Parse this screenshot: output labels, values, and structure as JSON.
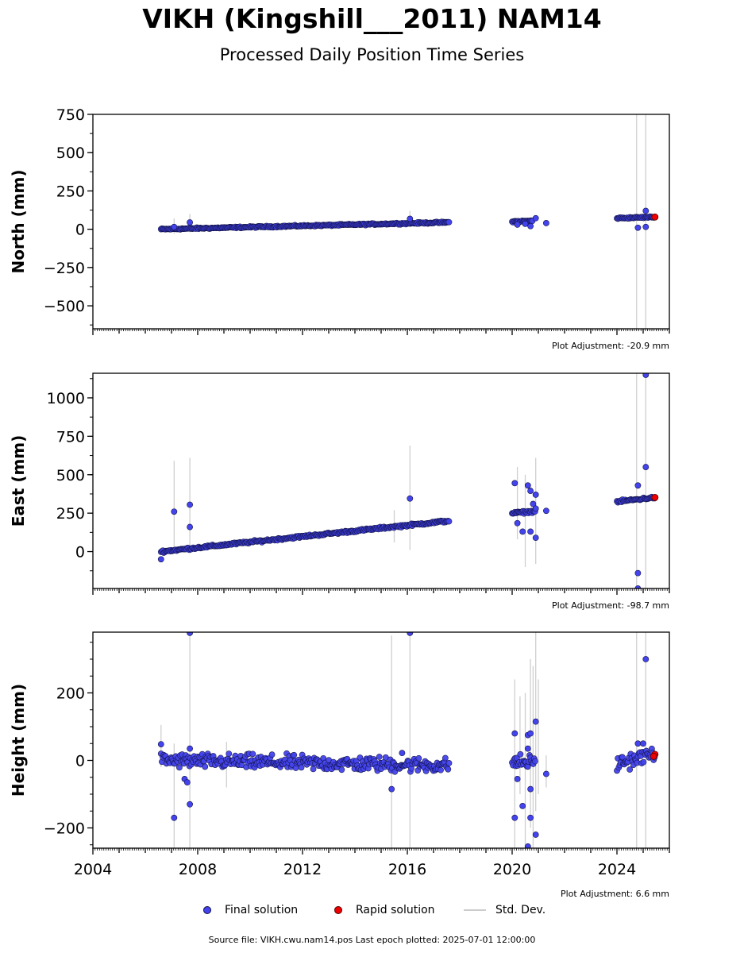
{
  "title": "VIKH (Kingshill___2011) NAM14",
  "subtitle": "Processed Daily Position Time Series",
  "legend": {
    "final": "Final solution",
    "rapid": "Rapid solution",
    "std": "Std. Dev."
  },
  "footer": "Source file: VIKH.cwu.nam14.pos  Last epoch plotted: 2025-07-01 12:00:00",
  "colors": {
    "final": "#4444ee",
    "final_edge": "#111144",
    "rapid": "#ee0000",
    "std": "#bbbbbb"
  },
  "chart_data": [
    {
      "type": "scatter",
      "ylabel": "North (mm)",
      "adjustment": "Plot Adjustment: -20.9 mm",
      "xlim": [
        2004,
        2026
      ],
      "ylim": [
        -650,
        750
      ],
      "yticks": [
        750,
        500,
        250,
        0,
        -250,
        -500
      ],
      "ytick_labels": [
        "750",
        "500",
        "250",
        "0",
        "−250",
        "−500"
      ],
      "yminor_step": 125,
      "trend_segments": [
        {
          "x0": 2006.6,
          "x1": 2017.6,
          "y0": 0,
          "y1": 45
        },
        {
          "x0": 2020.0,
          "x1": 2020.8,
          "y0": 50,
          "y1": 55
        },
        {
          "x0": 2024.0,
          "x1": 2025.45,
          "y0": 72,
          "y1": 80
        }
      ],
      "noise": 4,
      "outliers": [
        {
          "x": 2007.7,
          "y": 45
        },
        {
          "x": 2007.1,
          "y": 15
        },
        {
          "x": 2016.1,
          "y": 68
        },
        {
          "x": 2020.5,
          "y": 35
        },
        {
          "x": 2020.7,
          "y": 20
        },
        {
          "x": 2021.3,
          "y": 40
        },
        {
          "x": 2020.9,
          "y": 72
        },
        {
          "x": 2020.2,
          "y": 30
        },
        {
          "x": 2024.8,
          "y": 10
        },
        {
          "x": 2025.1,
          "y": 15
        },
        {
          "x": 2025.1,
          "y": 120
        }
      ],
      "errorbars": [
        {
          "x": 2007.1,
          "lo": -30,
          "hi": 70
        },
        {
          "x": 2007.7,
          "lo": -20,
          "hi": 100
        },
        {
          "x": 2016.1,
          "lo": 30,
          "hi": 120
        },
        {
          "x": 2024.75,
          "lo": -650,
          "hi": 750
        },
        {
          "x": 2025.1,
          "lo": -650,
          "hi": 750
        }
      ],
      "rapid": [
        {
          "x": 2025.45,
          "y": 80
        }
      ]
    },
    {
      "type": "scatter",
      "ylabel": "East (mm)",
      "adjustment": "Plot Adjustment: -98.7 mm",
      "xlim": [
        2004,
        2026
      ],
      "ylim": [
        -240,
        1160
      ],
      "yticks": [
        1000,
        750,
        500,
        250,
        0
      ],
      "ytick_labels": [
        "1000",
        "750",
        "500",
        "250",
        "0"
      ],
      "yminor_step": 125,
      "trend_segments": [
        {
          "x0": 2006.6,
          "x1": 2017.6,
          "y0": 0,
          "y1": 200
        },
        {
          "x0": 2020.0,
          "x1": 2020.9,
          "y0": 250,
          "y1": 262
        },
        {
          "x0": 2024.0,
          "x1": 2025.45,
          "y0": 325,
          "y1": 352
        }
      ],
      "noise": 6,
      "outliers": [
        {
          "x": 2006.6,
          "y": -50
        },
        {
          "x": 2007.1,
          "y": 260
        },
        {
          "x": 2007.7,
          "y": 305
        },
        {
          "x": 2007.7,
          "y": 160
        },
        {
          "x": 2016.1,
          "y": 345
        },
        {
          "x": 2020.1,
          "y": 445
        },
        {
          "x": 2020.2,
          "y": 185
        },
        {
          "x": 2020.6,
          "y": 430
        },
        {
          "x": 2020.7,
          "y": 395
        },
        {
          "x": 2020.8,
          "y": 310
        },
        {
          "x": 2020.9,
          "y": 370
        },
        {
          "x": 2020.9,
          "y": 280
        },
        {
          "x": 2020.4,
          "y": 130
        },
        {
          "x": 2020.7,
          "y": 130
        },
        {
          "x": 2020.9,
          "y": 90
        },
        {
          "x": 2021.3,
          "y": 265
        },
        {
          "x": 2024.8,
          "y": 430
        },
        {
          "x": 2024.8,
          "y": -140
        },
        {
          "x": 2025.1,
          "y": 550
        },
        {
          "x": 2025.1,
          "y": 1150
        },
        {
          "x": 2024.8,
          "y": -240
        }
      ],
      "errorbars": [
        {
          "x": 2007.1,
          "lo": 0,
          "hi": 590
        },
        {
          "x": 2007.7,
          "lo": 0,
          "hi": 610
        },
        {
          "x": 2016.1,
          "lo": 10,
          "hi": 690
        },
        {
          "x": 2015.5,
          "lo": 60,
          "hi": 270
        },
        {
          "x": 2020.2,
          "lo": 80,
          "hi": 550
        },
        {
          "x": 2020.5,
          "lo": -100,
          "hi": 500
        },
        {
          "x": 2020.9,
          "lo": -80,
          "hi": 610
        },
        {
          "x": 2024.75,
          "lo": -240,
          "hi": 1160
        },
        {
          "x": 2025.1,
          "lo": -240,
          "hi": 1160
        }
      ],
      "rapid": [
        {
          "x": 2025.45,
          "y": 352
        }
      ]
    },
    {
      "type": "scatter",
      "ylabel": "Height (mm)",
      "adjustment": "Plot Adjustment: 6.6 mm",
      "xlim": [
        2004,
        2026
      ],
      "ylim": [
        -260,
        380
      ],
      "yticks": [
        200,
        0,
        -200
      ],
      "ytick_labels": [
        "200",
        "0",
        "−200"
      ],
      "yminor_step": 50,
      "xticks": [
        2004,
        2008,
        2012,
        2016,
        2020,
        2024
      ],
      "xtick_labels": [
        "2004",
        "2008",
        "2012",
        "2016",
        "2020",
        "2024"
      ],
      "trend_segments": [
        {
          "x0": 2006.6,
          "x1": 2017.6,
          "y0": 0,
          "y1": -15
        },
        {
          "x0": 2020.0,
          "x1": 2020.9,
          "y0": -5,
          "y1": -5
        },
        {
          "x0": 2024.0,
          "x1": 2025.45,
          "y0": -10,
          "y1": 20
        }
      ],
      "noise": 18,
      "outliers": [
        {
          "x": 2006.6,
          "y": 48
        },
        {
          "x": 2007.1,
          "y": -170
        },
        {
          "x": 2007.5,
          "y": -55
        },
        {
          "x": 2007.6,
          "y": -65
        },
        {
          "x": 2007.7,
          "y": -130
        },
        {
          "x": 2007.7,
          "y": 378
        },
        {
          "x": 2007.7,
          "y": 35
        },
        {
          "x": 2015.4,
          "y": -85
        },
        {
          "x": 2015.8,
          "y": 22
        },
        {
          "x": 2016.1,
          "y": 378
        },
        {
          "x": 2020.1,
          "y": -170
        },
        {
          "x": 2020.2,
          "y": -55
        },
        {
          "x": 2020.4,
          "y": -135
        },
        {
          "x": 2020.6,
          "y": 75
        },
        {
          "x": 2020.7,
          "y": 80
        },
        {
          "x": 2020.6,
          "y": 35
        },
        {
          "x": 2020.7,
          "y": -85
        },
        {
          "x": 2020.7,
          "y": -170
        },
        {
          "x": 2020.9,
          "y": -220
        },
        {
          "x": 2020.9,
          "y": 115
        },
        {
          "x": 2020.6,
          "y": -255
        },
        {
          "x": 2021.3,
          "y": -40
        },
        {
          "x": 2020.1,
          "y": 80
        },
        {
          "x": 2024.8,
          "y": 50
        },
        {
          "x": 2025.0,
          "y": 50
        },
        {
          "x": 2025.1,
          "y": 300
        }
      ],
      "errorbars": [
        {
          "x": 2007.7,
          "lo": -260,
          "hi": 380
        },
        {
          "x": 2007.1,
          "lo": -260,
          "hi": 50
        },
        {
          "x": 2015.4,
          "lo": -260,
          "hi": 370
        },
        {
          "x": 2016.1,
          "lo": -260,
          "hi": 380
        },
        {
          "x": 2006.6,
          "lo": -20,
          "hi": 105
        },
        {
          "x": 2009.1,
          "lo": -80,
          "hi": 55
        },
        {
          "x": 2020.1,
          "lo": -260,
          "hi": 240
        },
        {
          "x": 2020.3,
          "lo": -100,
          "hi": 190
        },
        {
          "x": 2020.5,
          "lo": -260,
          "hi": 200
        },
        {
          "x": 2020.7,
          "lo": -200,
          "hi": 300
        },
        {
          "x": 2020.8,
          "lo": -260,
          "hi": 280
        },
        {
          "x": 2020.9,
          "lo": -150,
          "hi": 380
        },
        {
          "x": 2021.0,
          "lo": -100,
          "hi": 240
        },
        {
          "x": 2021.3,
          "lo": -80,
          "hi": 15
        },
        {
          "x": 2024.75,
          "lo": -260,
          "hi": 380
        },
        {
          "x": 2025.1,
          "lo": -260,
          "hi": 380
        }
      ],
      "rapid": [
        {
          "x": 2025.45,
          "y": 18
        },
        {
          "x": 2025.4,
          "y": 12
        }
      ]
    }
  ]
}
